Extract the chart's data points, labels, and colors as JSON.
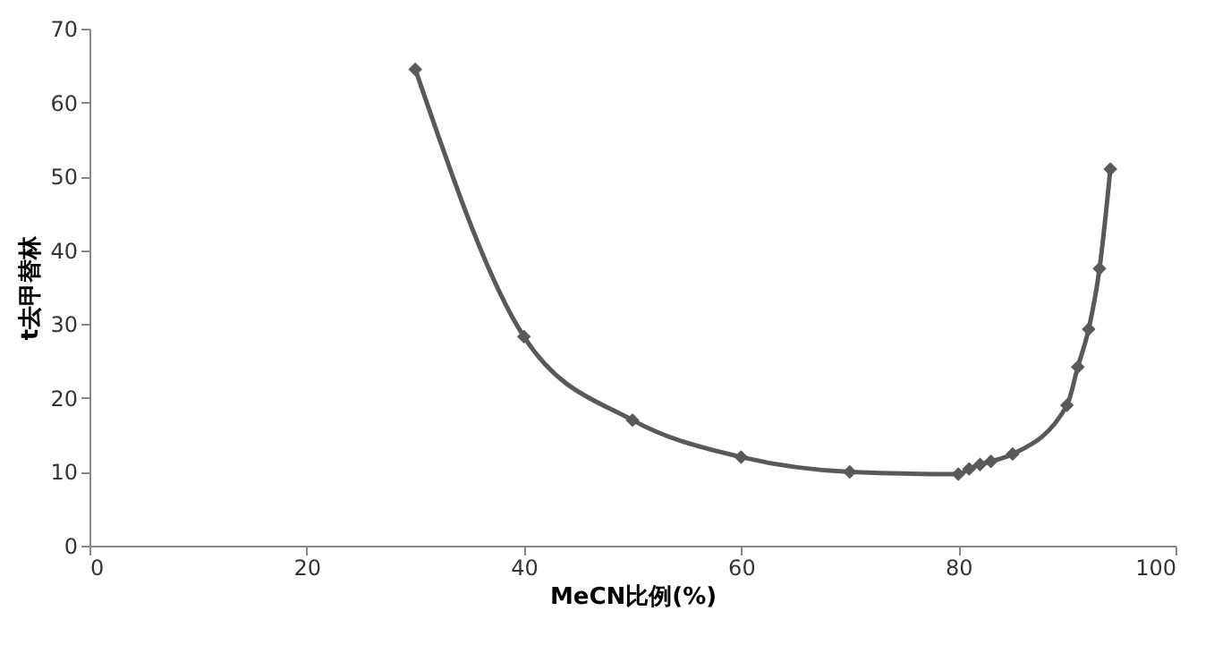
{
  "chart_data": {
    "type": "line",
    "xlabel": "MeCN比例(%)",
    "ylabel": "t去甲替林",
    "x": [
      30,
      40,
      50,
      60,
      70,
      80,
      81,
      82,
      83,
      85,
      90,
      91,
      92,
      93,
      94
    ],
    "series": [
      {
        "color": "#595959",
        "values": [
          64.5,
          28.3,
          17,
          12,
          10,
          9.7,
          10.4,
          11,
          11.4,
          12.4,
          19,
          24.2,
          29.3,
          37.5,
          51
        ]
      }
    ],
    "xlim": [
      0,
      100
    ],
    "xticks": [
      0,
      20,
      40,
      60,
      80,
      100
    ],
    "ylim": [
      0,
      70
    ],
    "yticks": [
      0,
      10,
      20,
      30,
      40,
      50,
      60,
      70
    ],
    "grid": false,
    "marker": "diamond",
    "line_style": "solid"
  }
}
